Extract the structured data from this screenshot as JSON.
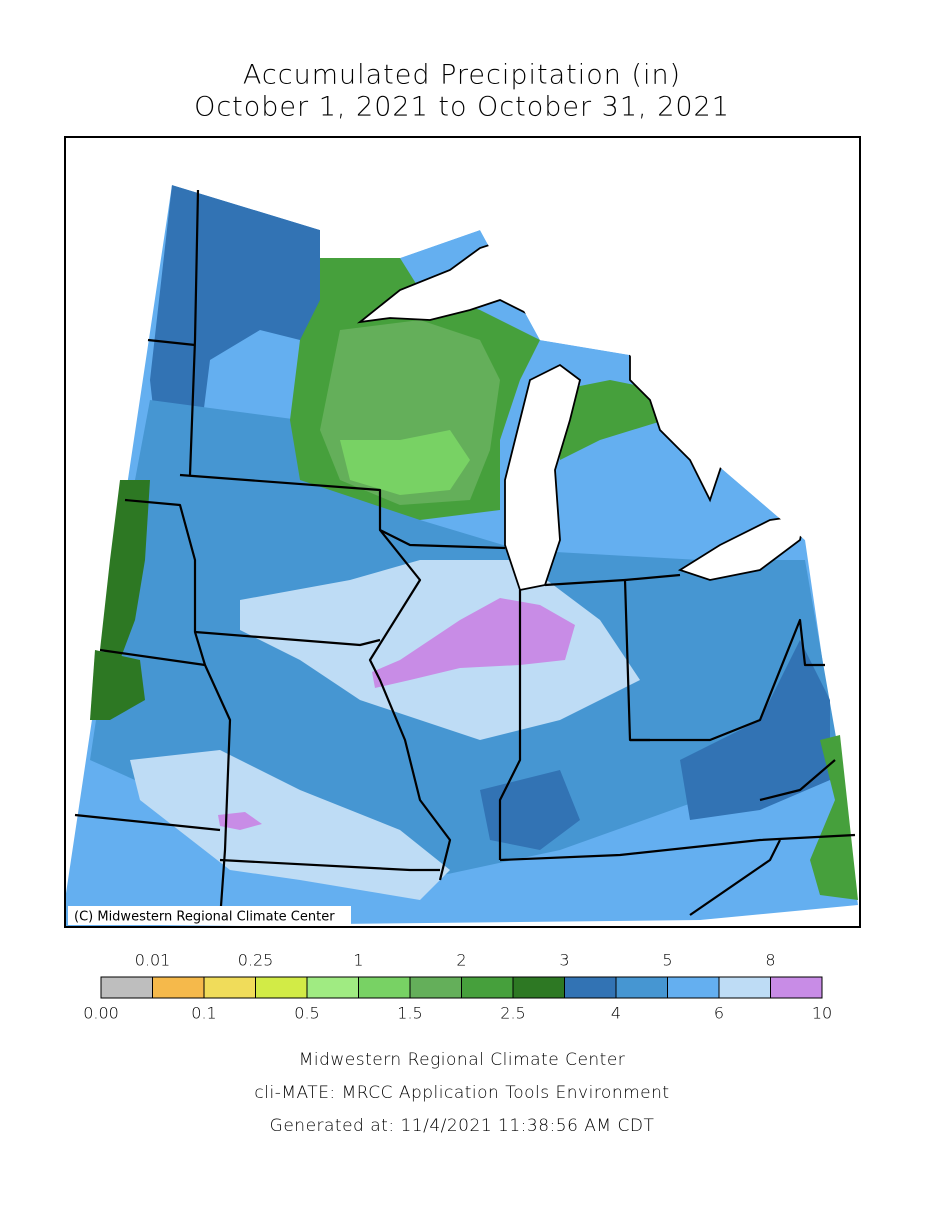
{
  "header": {
    "title": "Accumulated Precipitation (in)",
    "subtitle": "October 1, 2021 to October 31, 2021"
  },
  "map": {
    "credit": "(C) Midwestern Regional Climate Center"
  },
  "legend": {
    "breaks": [
      {
        "value": 0,
        "label": "0.00"
      },
      0.01,
      0.1,
      0.25,
      0.5,
      1,
      1.5,
      2,
      2.5,
      3,
      4,
      5,
      6,
      8,
      10
    ],
    "colors": [
      "#bebebe",
      "#f5b94b",
      "#f0dc5a",
      "#d2eb46",
      "#a0eb82",
      "#78d264",
      "#64af5a",
      "#46a03c",
      "#2d7823",
      "#3273b4",
      "#4696d2",
      "#64aff0",
      "#bedcf5",
      "#c88ce6"
    ]
  },
  "footer": {
    "lines": [
      "Midwestern Regional Climate Center",
      "cli-MATE: MRCC Application Tools Environment",
      "Generated at: 11/4/2021 11:38:56 AM CDT"
    ]
  }
}
